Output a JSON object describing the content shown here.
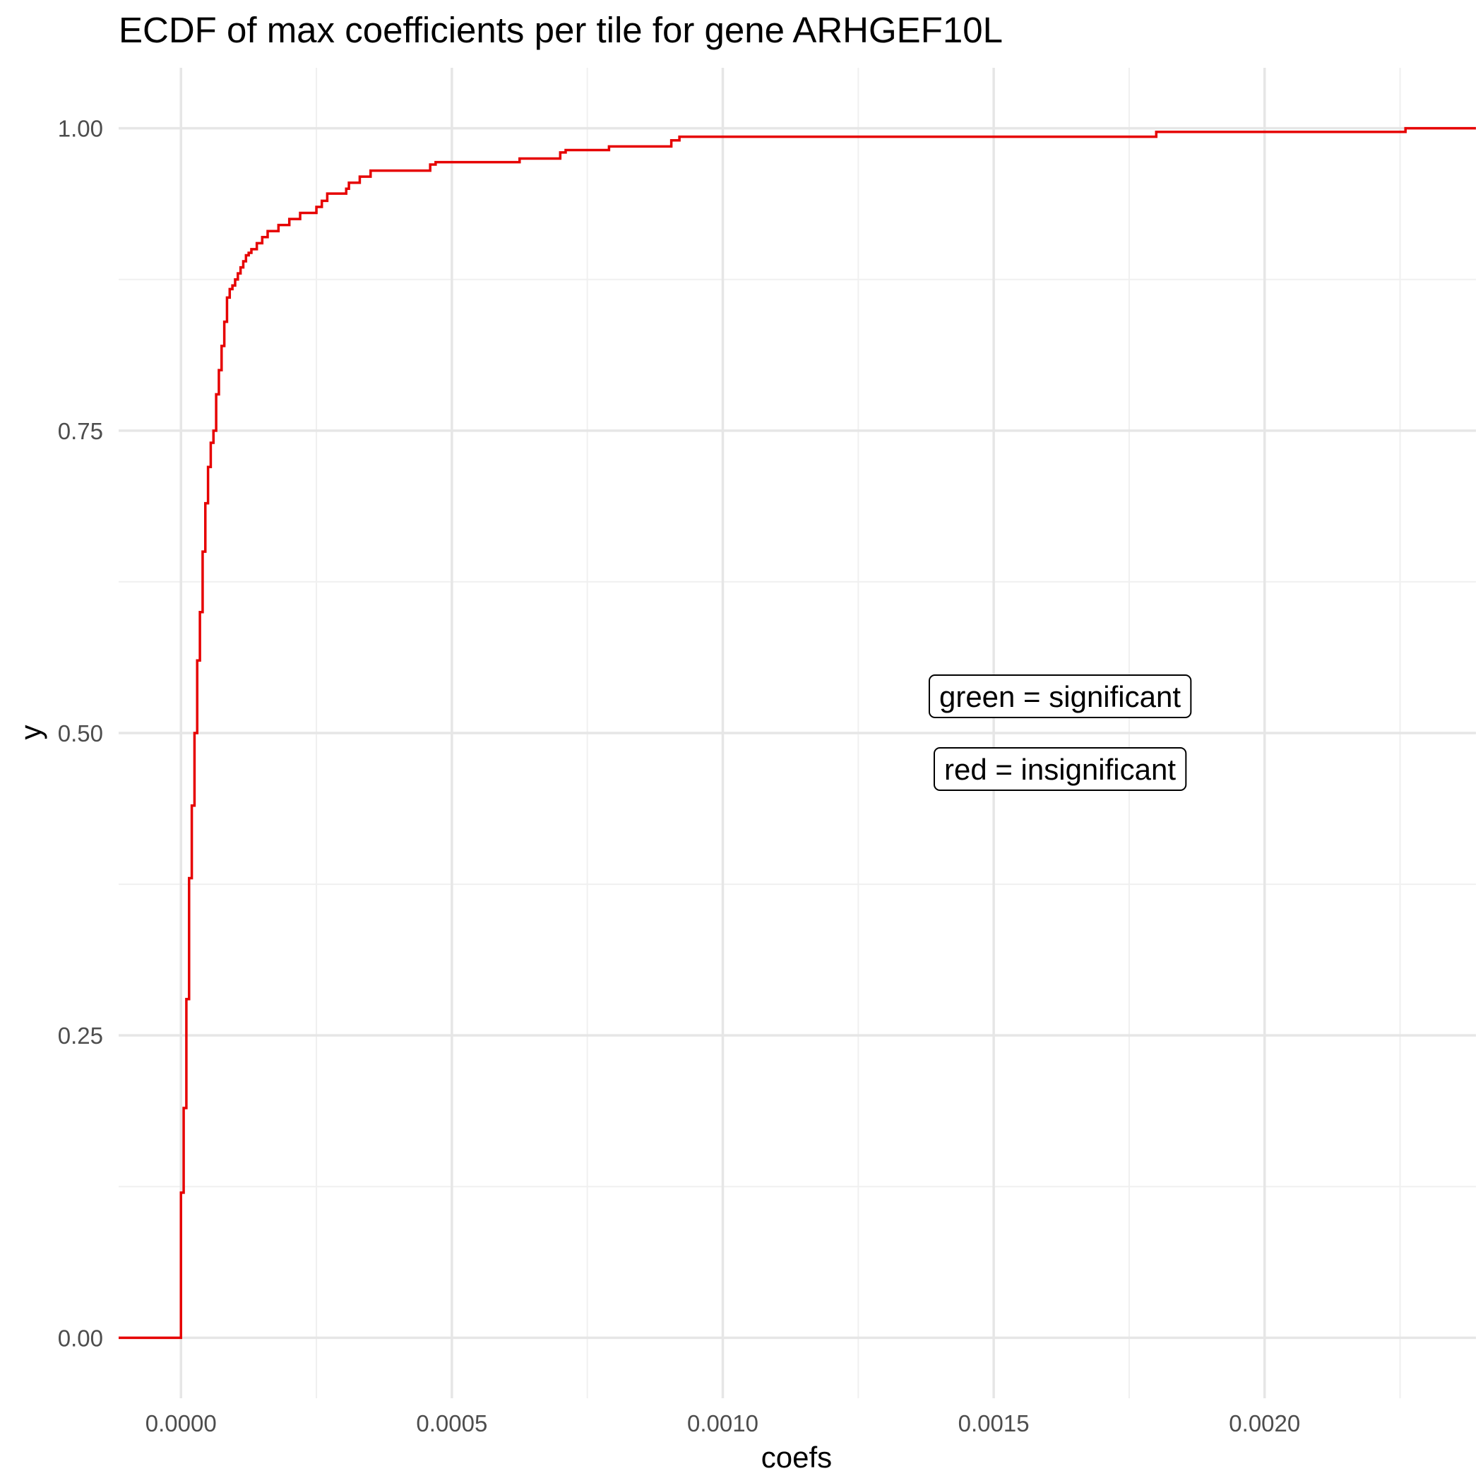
{
  "chart_data": {
    "type": "line",
    "subtype": "ecdf-step",
    "title": "ECDF of max coefficients per tile for gene ARHGEF10L",
    "xlabel": "coefs",
    "ylabel": "y",
    "xlim": [
      -0.000115,
      0.00239
    ],
    "ylim": [
      -0.05,
      1.05
    ],
    "x_ticks": [
      0.0,
      0.0005,
      0.001,
      0.0015,
      0.002
    ],
    "x_tick_labels": [
      "0.0000",
      "0.0005",
      "0.0010",
      "0.0015",
      "0.0020"
    ],
    "y_ticks": [
      0.0,
      0.25,
      0.5,
      0.75,
      1.0
    ],
    "y_tick_labels": [
      "0.00",
      "0.25",
      "0.50",
      "0.75",
      "1.00"
    ],
    "grid": true,
    "legend": "none",
    "series": [
      {
        "color": "#e60000",
        "x": [
          0.0,
          5e-06,
          1e-05,
          1.5e-05,
          2e-05,
          2.5e-05,
          3e-05,
          3.5e-05,
          4e-05,
          4.5e-05,
          5e-05,
          5.5e-05,
          6e-05,
          6.5e-05,
          7e-05,
          7.5e-05,
          8e-05,
          8.5e-05,
          9e-05,
          9.5e-05,
          0.0001,
          0.000105,
          0.00011,
          0.000115,
          0.00012,
          0.000125,
          0.00013,
          0.00014,
          0.00015,
          0.00016,
          0.00018,
          0.0002,
          0.00022,
          0.00025,
          0.00026,
          0.00027,
          0.000305,
          0.00031,
          0.00033,
          0.00035,
          0.00046,
          0.00047,
          0.000625,
          0.0007,
          0.00071,
          0.00079,
          0.000905,
          0.00092,
          0.0018,
          0.00226
        ],
        "y": [
          0.12,
          0.19,
          0.28,
          0.38,
          0.44,
          0.5,
          0.56,
          0.6,
          0.65,
          0.69,
          0.72,
          0.74,
          0.75,
          0.78,
          0.8,
          0.82,
          0.84,
          0.86,
          0.867,
          0.87,
          0.875,
          0.88,
          0.885,
          0.89,
          0.895,
          0.897,
          0.9,
          0.905,
          0.91,
          0.915,
          0.92,
          0.925,
          0.93,
          0.935,
          0.94,
          0.946,
          0.95,
          0.955,
          0.96,
          0.965,
          0.97,
          0.972,
          0.975,
          0.98,
          0.982,
          0.985,
          0.99,
          0.993,
          0.997,
          1.0
        ]
      }
    ],
    "annotations": [
      "green = significant",
      "red = insignificant"
    ]
  }
}
